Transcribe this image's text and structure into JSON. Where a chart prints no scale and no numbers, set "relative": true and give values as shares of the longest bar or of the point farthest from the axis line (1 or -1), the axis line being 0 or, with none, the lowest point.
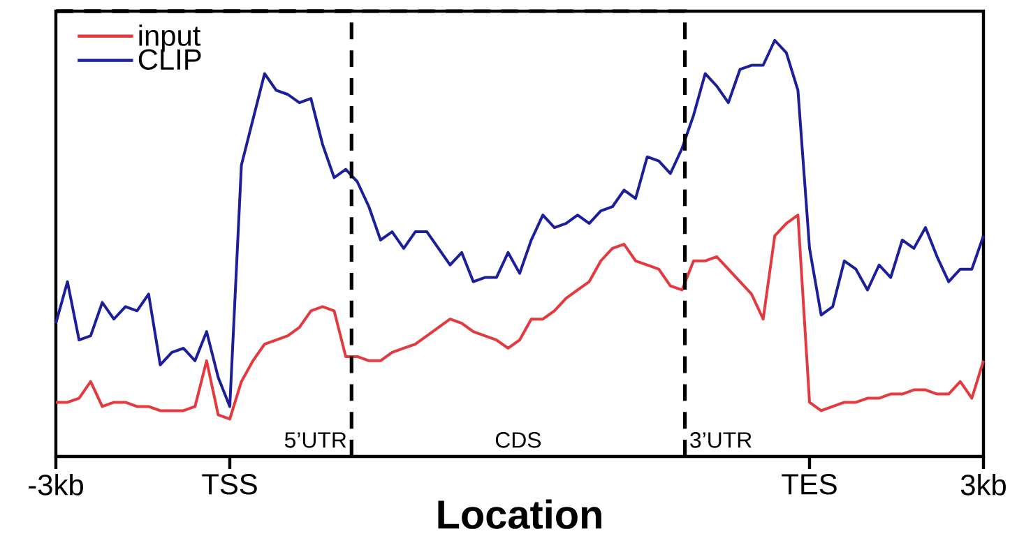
{
  "chart_data": {
    "type": "line",
    "relative": true,
    "xlabel": "Location",
    "legend": "top left",
    "grid": false,
    "marker": "none",
    "line_style": "solid",
    "categories": [
      "-3kb",
      null,
      null,
      null,
      null,
      null,
      null,
      null,
      null,
      null,
      null,
      null,
      null,
      null,
      null,
      "TSS",
      null,
      null,
      null,
      null,
      null,
      null,
      null,
      null,
      null,
      null,
      null,
      null,
      null,
      null,
      null,
      null,
      null,
      null,
      null,
      null,
      null,
      null,
      null,
      null,
      null,
      null,
      null,
      null,
      null,
      null,
      null,
      null,
      null,
      null,
      null,
      null,
      null,
      null,
      null,
      null,
      null,
      null,
      null,
      null,
      null,
      null,
      null,
      null,
      null,
      "TES",
      null,
      null,
      null,
      null,
      null,
      null,
      null,
      null,
      null,
      null,
      null,
      null,
      null,
      null,
      "3kb"
    ],
    "annotations": [
      "5’UTR",
      "CDS",
      "3’UTR"
    ],
    "series": [
      {
        "name": "input",
        "color": "#e23a3f",
        "values": [
          0.13,
          0.13,
          0.14,
          0.18,
          0.12,
          0.13,
          0.13,
          0.12,
          0.12,
          0.11,
          0.11,
          0.11,
          0.12,
          0.23,
          0.1,
          0.09,
          0.18,
          0.23,
          0.27,
          0.28,
          0.29,
          0.31,
          0.35,
          0.36,
          0.35,
          0.24,
          0.24,
          0.23,
          0.23,
          0.25,
          0.26,
          0.27,
          0.29,
          0.31,
          0.33,
          0.32,
          0.3,
          0.29,
          0.28,
          0.26,
          0.28,
          0.33,
          0.33,
          0.35,
          0.38,
          0.4,
          0.42,
          0.47,
          0.5,
          0.51,
          0.47,
          0.46,
          0.45,
          0.41,
          0.4,
          0.47,
          0.47,
          0.48,
          0.45,
          0.42,
          0.39,
          0.33,
          0.53,
          0.56,
          0.58,
          0.13,
          0.11,
          0.12,
          0.13,
          0.13,
          0.14,
          0.14,
          0.15,
          0.15,
          0.16,
          0.16,
          0.15,
          0.15,
          0.18,
          0.14,
          0.23
        ]
      },
      {
        "name": "CLIP",
        "color": "#1c1f99",
        "values": [
          0.32,
          0.42,
          0.28,
          0.29,
          0.37,
          0.33,
          0.36,
          0.35,
          0.39,
          0.22,
          0.25,
          0.26,
          0.23,
          0.3,
          0.19,
          0.12,
          0.7,
          0.81,
          0.92,
          0.88,
          0.87,
          0.85,
          0.86,
          0.75,
          0.67,
          0.69,
          0.66,
          0.6,
          0.52,
          0.54,
          0.5,
          0.54,
          0.54,
          0.5,
          0.46,
          0.49,
          0.42,
          0.43,
          0.43,
          0.49,
          0.44,
          0.52,
          0.58,
          0.55,
          0.56,
          0.58,
          0.56,
          0.59,
          0.6,
          0.64,
          0.62,
          0.72,
          0.71,
          0.68,
          0.74,
          0.82,
          0.92,
          0.89,
          0.85,
          0.93,
          0.94,
          0.94,
          1.0,
          0.97,
          0.88,
          0.5,
          0.34,
          0.36,
          0.47,
          0.45,
          0.4,
          0.46,
          0.43,
          0.52,
          0.5,
          0.55,
          0.48,
          0.42,
          0.45,
          0.45,
          0.53
        ]
      }
    ]
  }
}
